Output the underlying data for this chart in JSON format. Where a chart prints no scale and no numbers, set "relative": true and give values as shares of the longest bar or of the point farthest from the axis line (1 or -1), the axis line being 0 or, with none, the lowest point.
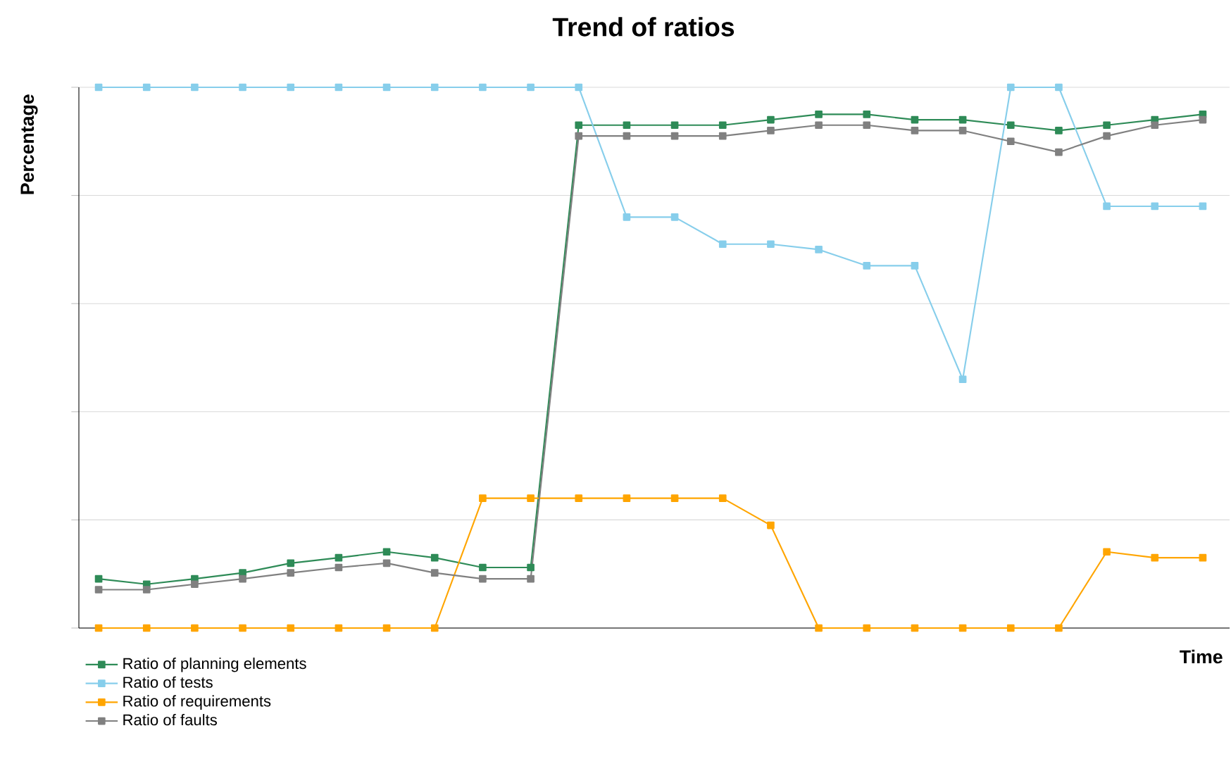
{
  "chart_data": {
    "type": "line",
    "title": "Trend of ratios",
    "xlabel": "Time",
    "ylabel": "Percentage",
    "relative": true,
    "grid": "y",
    "legend": "bottom left",
    "marker": "square",
    "line_style": "solid",
    "categories": [
      null,
      null,
      null,
      null,
      null,
      null,
      null,
      null,
      null,
      null,
      null,
      null,
      null,
      null,
      null,
      null,
      null,
      null,
      null,
      null,
      null,
      null,
      null,
      null
    ],
    "series": [
      {
        "name": "Ratio of planning elements",
        "color": "#2e8b57",
        "values": [
          0.091,
          0.081,
          0.091,
          0.102,
          0.12,
          0.13,
          0.141,
          0.13,
          0.112,
          0.112,
          0.93,
          0.93,
          0.93,
          0.93,
          0.94,
          0.95,
          0.95,
          0.94,
          0.94,
          0.93,
          0.92,
          0.93,
          0.94,
          0.95
        ]
      },
      {
        "name": "Ratio of tests",
        "color": "#87ceeb",
        "values": [
          1,
          1,
          1,
          1,
          1,
          1,
          1,
          1,
          1,
          1,
          1,
          0.76,
          0.76,
          0.71,
          0.71,
          0.7,
          0.67,
          0.67,
          0.46,
          1,
          1,
          0.78,
          0.78,
          0.78
        ]
      },
      {
        "name": "Ratio of requirements",
        "color": "#ffa500",
        "values": [
          0,
          0,
          0,
          0,
          0,
          0,
          0,
          0,
          0.24,
          0.24,
          0.24,
          0.24,
          0.24,
          0.24,
          0.19,
          0,
          0,
          0,
          0,
          0,
          0,
          0.141,
          0.13,
          0.13
        ]
      },
      {
        "name": "Ratio of faults",
        "color": "#808080",
        "values": [
          0.071,
          0.071,
          0.081,
          0.091,
          0.102,
          0.112,
          0.12,
          0.102,
          0.091,
          0.091,
          0.91,
          0.91,
          0.91,
          0.91,
          0.92,
          0.93,
          0.93,
          0.92,
          0.92,
          0.9,
          0.88,
          0.91,
          0.93,
          0.94
        ]
      }
    ]
  }
}
